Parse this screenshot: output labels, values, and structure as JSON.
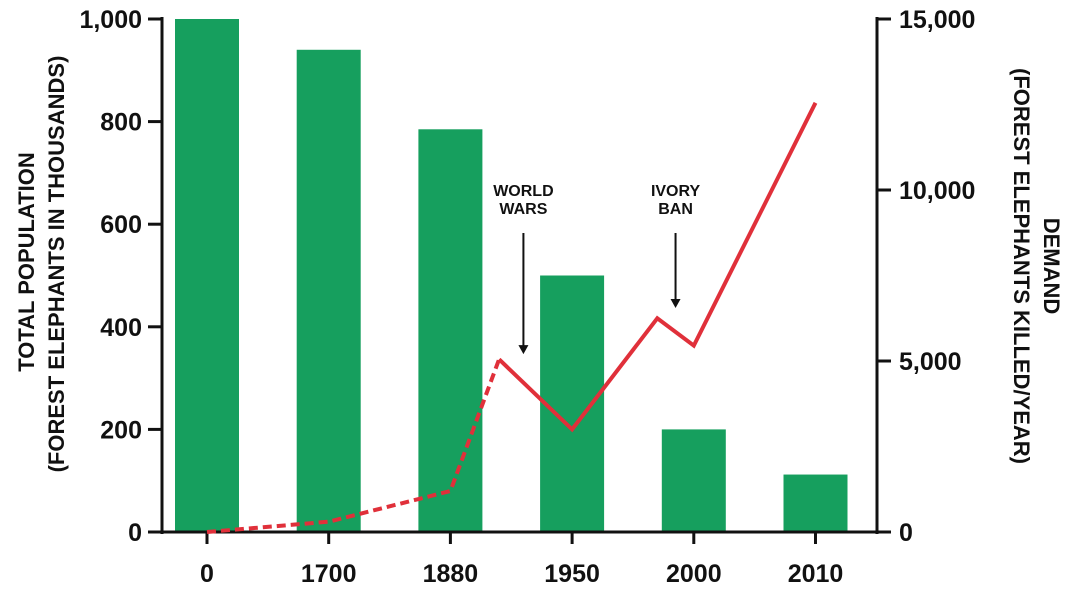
{
  "chart_data": {
    "type": "bar",
    "categories": [
      "0",
      "1700",
      "1880",
      "1950",
      "2000",
      "2010"
    ],
    "bar_series": {
      "values": [
        1000,
        940,
        785,
        500,
        200,
        112
      ],
      "color": "#169F5E"
    },
    "y_left": {
      "label_line1": "TOTAL POPULATION",
      "label_line2": "(FOREST ELEPHANTS IN THOUSANDS)",
      "ylim": [
        0,
        1000
      ],
      "ticks": [
        0,
        200,
        400,
        600,
        800,
        1000
      ],
      "tick_labels": [
        "0",
        "200",
        "400",
        "600",
        "800",
        "1,000"
      ]
    },
    "y_right": {
      "label_line1": "DEMAND",
      "label_line2": "(FOREST ELEPHANTS KILLED/YEAR)",
      "ylim": [
        0,
        15000
      ],
      "ticks": [
        0,
        5000,
        10000,
        15000
      ],
      "tick_labels": [
        "0",
        "5,000",
        "10,000",
        "15,000"
      ]
    },
    "line_series": {
      "color": "#E0303A",
      "points": [
        {
          "x": 0,
          "y": 0,
          "style": "dashed"
        },
        {
          "x": 1,
          "y": 300,
          "style": "dashed"
        },
        {
          "x": 2,
          "y": 1200,
          "style": "dashed"
        },
        {
          "x": 2.4,
          "y": 5050,
          "style": "dashed"
        },
        {
          "x": 3,
          "y": 3000,
          "style": "solid"
        },
        {
          "x": 3.7,
          "y": 6250,
          "style": "solid"
        },
        {
          "x": 4,
          "y": 5450,
          "style": "solid"
        },
        {
          "x": 5,
          "y": 12550,
          "style": "solid"
        }
      ]
    },
    "annotations": [
      {
        "lines": [
          "WORLD",
          "WARS"
        ],
        "x": 2.6,
        "arrow_tip_y": 5200
      },
      {
        "lines": [
          "IVORY",
          "BAN"
        ],
        "x": 3.85,
        "arrow_tip_y": 6550
      }
    ]
  }
}
